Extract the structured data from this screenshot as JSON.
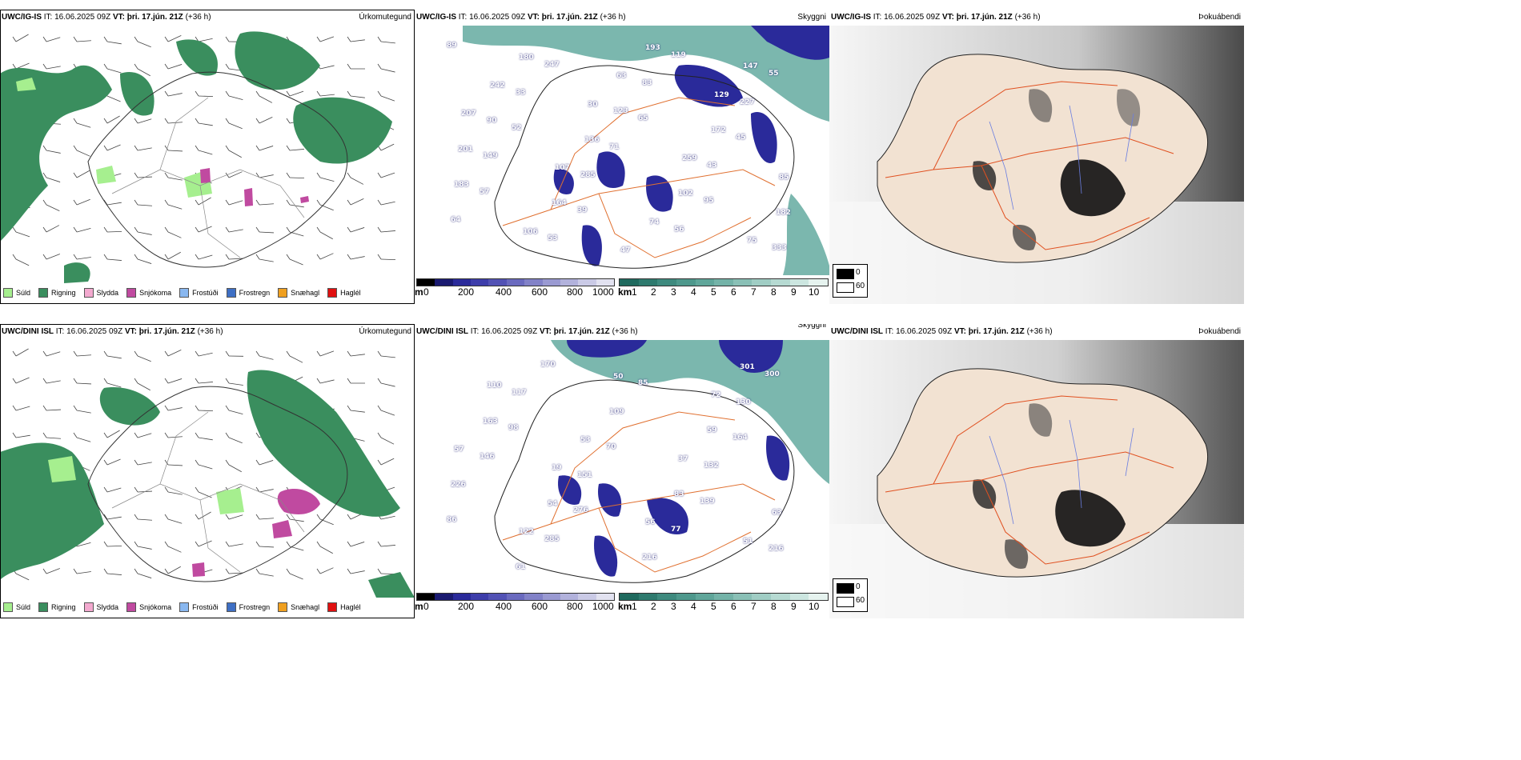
{
  "colors": {
    "rain": "#3a8e5e",
    "drizzle": "#a6ef8f",
    "sleet": "#f3a9cf",
    "snow": "#c04aa0",
    "freezing_drizzle": "#8ab8f0",
    "freezing_rain": "#3e6fc4",
    "graupel": "#f0a020",
    "hail": "#e01010",
    "cloud_teal": "#5aa59a",
    "cloud_blue": "#2a2a9a",
    "land_tan": "#f2e2d2",
    "road": "#e07030"
  },
  "rows": [
    {
      "precip": {
        "model_label": "UWC/IG-IS",
        "it_label": "IT:",
        "it_value": "16.06.2025 09Z",
        "vt_label": "VT:",
        "vt_value": "þri. 17.jún. 21Z",
        "lead": "(+36 h)",
        "param": "Úrkomutegund"
      },
      "cloud": {
        "model_label": "UWC/IG-IS",
        "it_label": "IT:",
        "it_value": "16.06.2025 09Z",
        "vt_label": "VT:",
        "vt_value": "þri. 17.jún. 21Z",
        "lead": "(+36 h)",
        "param": "Skyggni",
        "labels": [
          "89",
          "65",
          "57",
          "119",
          "52",
          "95",
          "247",
          "45",
          "39",
          "55",
          "71",
          "64",
          "83",
          "149",
          "56",
          "33",
          "43",
          "53",
          "227",
          "285",
          "333",
          "123",
          "183",
          "193",
          "90",
          "102",
          "180",
          "172",
          "164",
          "147",
          "136",
          "182",
          "63",
          "201",
          "74",
          "242",
          "259",
          "106",
          "129",
          "107",
          "75",
          "30",
          "85",
          "47",
          "207"
        ]
      },
      "dew": {
        "model_label": "UWC/IG-IS",
        "it_label": "IT:",
        "it_value": "16.06.2025 09Z",
        "vt_label": "VT:",
        "vt_value": "þri. 17.jún. 21Z",
        "lead": "(+36 h)",
        "param": "Þokuábendi"
      }
    },
    {
      "precip": {
        "model_label": "UWC/DINI ISL",
        "it_label": "IT:",
        "it_value": "16.06.2025 09Z",
        "vt_label": "VT:",
        "vt_value": "þri. 17.jún. 21Z",
        "lead": "(+36 h)",
        "param": "Úrkomutegund"
      },
      "cloud": {
        "model_label": "UWC/DINI ISL",
        "it_label": "IT:",
        "it_value": "16.06.2025 09Z",
        "vt_label": "VT:",
        "vt_value": "þri. 17.jún. 21Z",
        "lead": "(+36 h)",
        "param": "Skyggni",
        "labels": [
          "98",
          "139",
          "170",
          "164",
          "276",
          "300",
          "70",
          "86",
          "85",
          "146",
          "77",
          "117",
          "132",
          "285",
          "130",
          "151",
          "216",
          "109",
          "226",
          "216",
          "163",
          "83",
          "61",
          "59",
          "54",
          "301",
          "53",
          "63",
          "50",
          "57",
          "56",
          "110",
          "37",
          "122",
          "72",
          "19",
          "51"
        ]
      },
      "dew": {
        "model_label": "UWC/DINI ISL",
        "it_label": "IT:",
        "it_value": "16.06.2025 09Z",
        "vt_label": "VT:",
        "vt_value": "þri. 17.jún. 21Z",
        "lead": "(+36 h)",
        "param": "Þokuábendi"
      }
    }
  ],
  "precip_legend": [
    {
      "label": "Súld",
      "color": "#a6ef8f"
    },
    {
      "label": "Rigning",
      "color": "#3a8e5e"
    },
    {
      "label": "Slydda",
      "color": "#f3a9cf"
    },
    {
      "label": "Snjókoma",
      "color": "#c04aa0"
    },
    {
      "label": "Frostúði",
      "color": "#8ab8f0"
    },
    {
      "label": "Frostregn",
      "color": "#3e6fc4"
    },
    {
      "label": "Snæhagl",
      "color": "#f0a020"
    },
    {
      "label": "Haglél",
      "color": "#e01010"
    }
  ],
  "cloud_base_scale": {
    "unit": "m",
    "ticks": [
      "0",
      "200",
      "400",
      "600",
      "800",
      "1000"
    ],
    "colors": [
      "#000000",
      "#1a1a70",
      "#2a2a9a",
      "#3d3daa",
      "#5252b5",
      "#6a6abf",
      "#8282c8",
      "#9a9ad2",
      "#b2b2dc",
      "#cacae6",
      "#e2e2f0"
    ]
  },
  "visibility_scale": {
    "unit": "km",
    "ticks": [
      "1",
      "2",
      "3",
      "4",
      "5",
      "6",
      "7",
      "8",
      "9",
      "10"
    ],
    "colors": [
      "#1f6a5e",
      "#2e7a6e",
      "#3e8a7e",
      "#4e988c",
      "#60a69a",
      "#74b3a8",
      "#8ac0b6",
      "#a0cdc4",
      "#b6dad2",
      "#cce6e0",
      "#e6f3ef"
    ]
  },
  "fog_legend": {
    "low": "0",
    "high": "60"
  }
}
